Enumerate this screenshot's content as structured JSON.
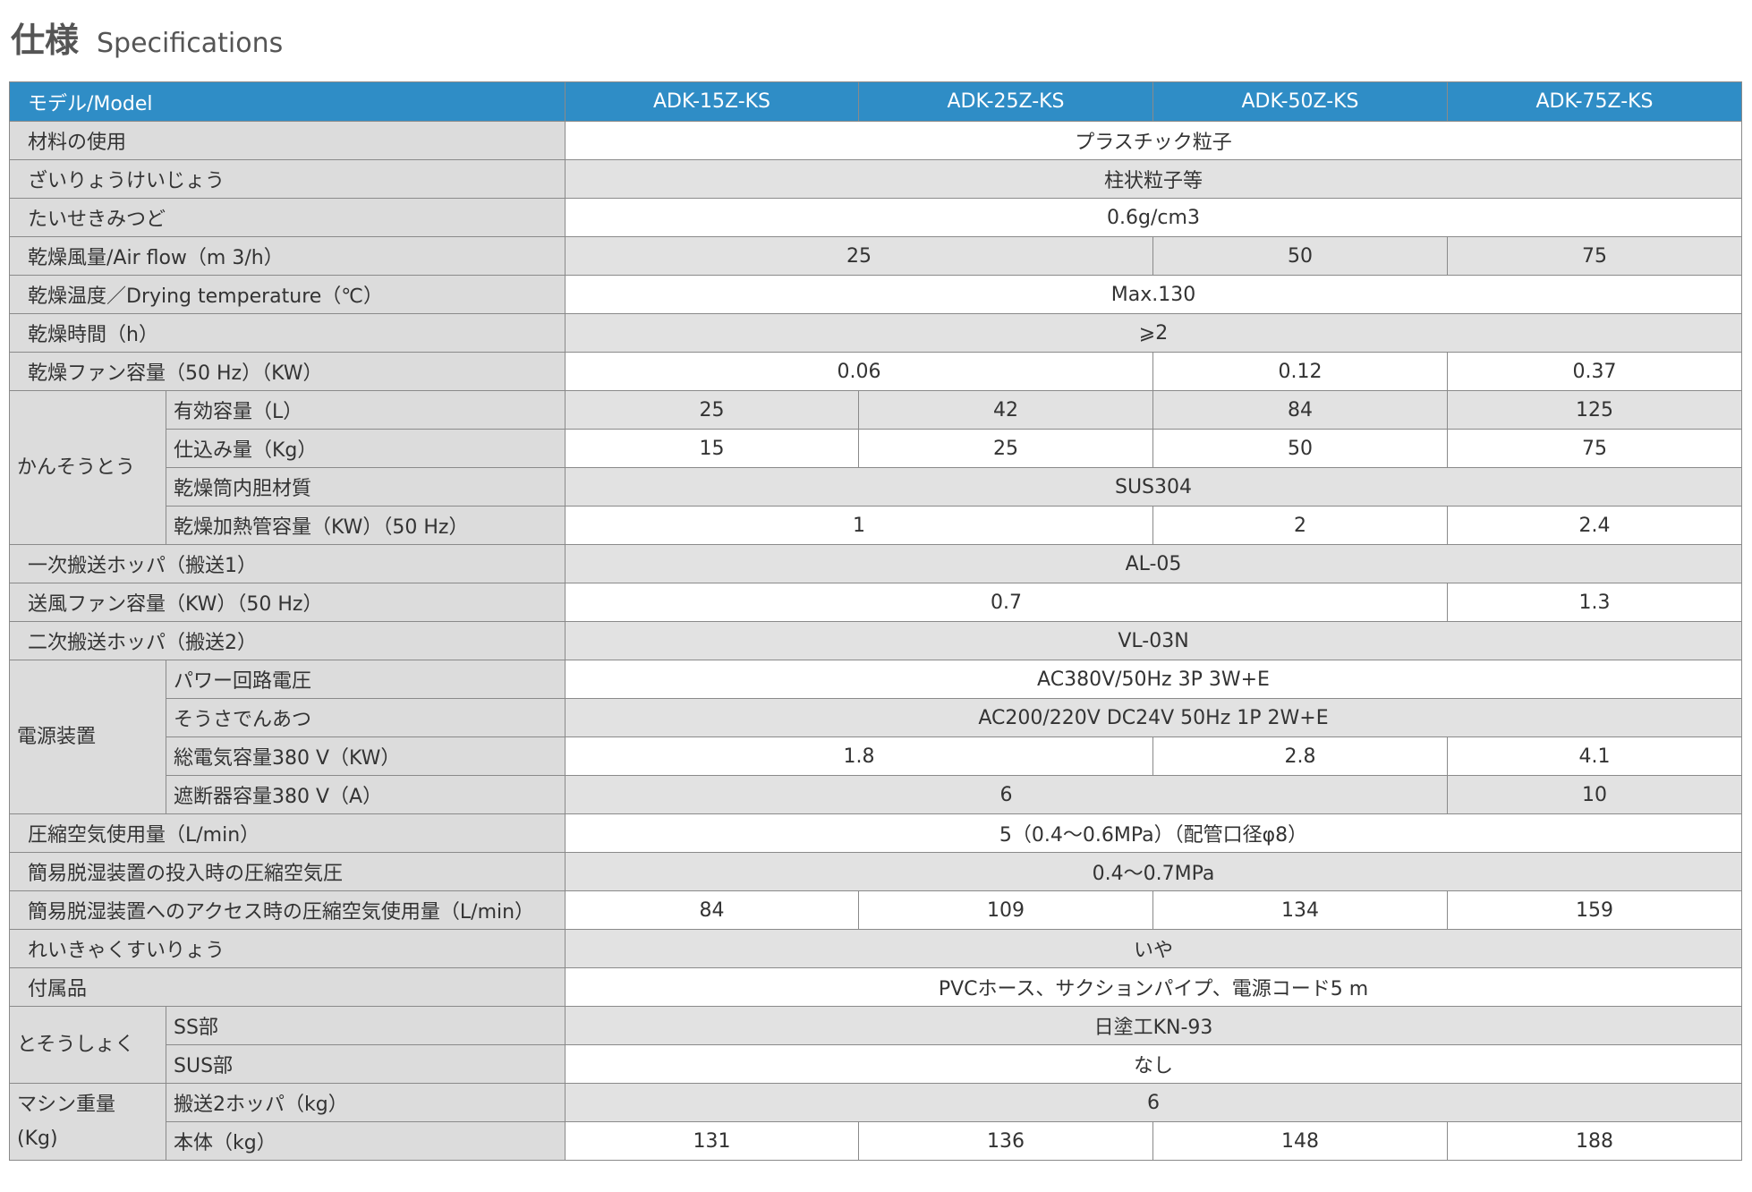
{
  "header": {
    "title": "仕様",
    "subtitle": "Specifications"
  },
  "table": {
    "header": [
      "モデル/Model",
      "ADK-15Z-KS",
      "ADK-25Z-KS",
      "ADK-50Z-KS",
      "ADK-75Z-KS"
    ],
    "rows": [
      {
        "label": "材料の使用",
        "cells": [
          "プラスチック粒子",
          null,
          null,
          null
        ]
      },
      {
        "label": "ざいりょうけいじょう",
        "cells": [
          "柱状粒子等",
          null,
          null,
          null
        ]
      },
      {
        "label": "たいせきみつど",
        "cells": [
          "0.6g/cm3",
          null,
          null,
          null
        ]
      },
      {
        "label": "乾燥風量/Air flow（m 3/h）",
        "cells": [
          "25",
          null,
          "50",
          "75"
        ]
      },
      {
        "label": "乾燥温度／Drying temperature（℃）",
        "cells": [
          "Max.130",
          null,
          null,
          null
        ]
      },
      {
        "label": "乾燥時間（h）",
        "cells": [
          "⩾2",
          null,
          null,
          null
        ]
      },
      {
        "label": "乾燥ファン容量（50 Hz）（KW）",
        "cells": [
          "0.06",
          null,
          "0.12",
          "0.37"
        ]
      },
      {
        "group": "かんそうとう",
        "items": [
          {
            "label": "有効容量（L）",
            "cells": [
              "25",
              "42",
              "84",
              "125"
            ]
          },
          {
            "label": "仕込み量（Kg）",
            "cells": [
              "15",
              "25",
              "50",
              "75"
            ]
          },
          {
            "label": "乾燥筒内胆材質",
            "cells": [
              "SUS304",
              null,
              null,
              null
            ]
          },
          {
            "label": "乾燥加熱管容量（KW）（50 Hz）",
            "cells": [
              "1",
              null,
              "2",
              "2.4"
            ]
          }
        ]
      },
      {
        "label": "一次搬送ホッパ（搬送1）",
        "cells": [
          "AL-05",
          null,
          null,
          null
        ]
      },
      {
        "label": "送風ファン容量（KW）（50 Hz）",
        "cells": [
          "0.7",
          null,
          null,
          "1.3"
        ]
      },
      {
        "label": "二次搬送ホッパ（搬送2）",
        "cells": [
          "VL-03N",
          null,
          null,
          null
        ]
      },
      {
        "group": "電源装置",
        "items": [
          {
            "label": "パワー回路電圧",
            "cells": [
              "AC380V/50Hz 3P 3W+E",
              null,
              null,
              null
            ]
          },
          {
            "label": "そうさでんあつ",
            "cells": [
              "AC200/220V DC24V 50Hz 1P 2W+E",
              null,
              null,
              null
            ]
          },
          {
            "label": "総電気容量380 V（KW）",
            "cells": [
              "1.8",
              null,
              "2.8",
              "4.1"
            ]
          },
          {
            "label": "遮断器容量380 V（A）",
            "cells": [
              "6",
              null,
              null,
              "10"
            ]
          }
        ]
      },
      {
        "label": "圧縮空気使用量（L/min）",
        "cells": [
          "5（0.4～0.6MPa）（配管口径φ8）",
          null,
          null,
          null
        ]
      },
      {
        "label": "簡易脱湿装置の投入時の圧縮空気圧",
        "cells": [
          "0.4～0.7MPa",
          null,
          null,
          null
        ]
      },
      {
        "label": "簡易脱湿装置へのアクセス時の圧縮空気使用量（L/min）",
        "cells": [
          "84",
          "109",
          "134",
          "159"
        ]
      },
      {
        "label": "れいきゃくすいりょう",
        "cells": [
          "いや",
          null,
          null,
          null
        ]
      },
      {
        "label": "付属品",
        "cells": [
          "PVCホース、サクションパイプ、電源コード5 m",
          null,
          null,
          null
        ]
      },
      {
        "group": "とそうしょく",
        "items": [
          {
            "label": "SS部",
            "cells": [
              "日塗工KN-93",
              null,
              null,
              null
            ]
          },
          {
            "label": "SUS部",
            "cells": [
              "なし",
              null,
              null,
              null
            ]
          }
        ]
      },
      {
        "group": "マシン重量\n(Kg)",
        "items": [
          {
            "label": "搬送2ホッパ（kg）",
            "cells": [
              "6",
              null,
              null,
              null
            ]
          },
          {
            "label": "本体（kg）",
            "cells": [
              "131",
              "136",
              "148",
              "188"
            ]
          }
        ]
      }
    ]
  }
}
